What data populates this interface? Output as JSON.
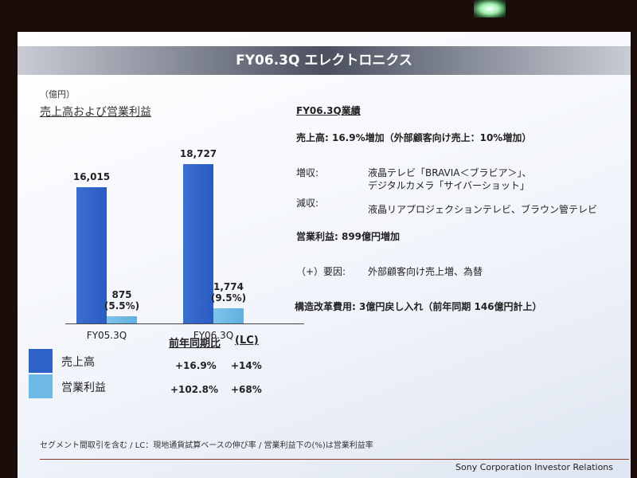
{
  "slide": {
    "title": "FY06.3Q エレクトロニクス",
    "unit": "（億円）",
    "chart_title": "売上高および営業利益"
  },
  "chart_data": {
    "type": "bar",
    "title": "売上高および営業利益",
    "categories": [
      "FY05.3Q",
      "FY06.3Q"
    ],
    "series": [
      {
        "name": "売上高",
        "values": [
          16015,
          18727
        ],
        "labels": [
          "16,015",
          "18,727"
        ],
        "color": "#2f62c8"
      },
      {
        "name": "営業利益",
        "values": [
          875,
          1774
        ],
        "labels": [
          "875\n(5.5%)",
          "1,774\n(9.5%)"
        ],
        "color": "#6fb9e6"
      }
    ]
  },
  "legend": {
    "items": [
      {
        "label": "売上高",
        "color": "#2f62c8"
      },
      {
        "label": "営業利益",
        "color": "#6fb9e6"
      }
    ]
  },
  "growth": {
    "header_yoy": "前年同期比",
    "header_lc": "(LC)",
    "rows": [
      {
        "yoy": "+16.9%",
        "lc": "+14%"
      },
      {
        "yoy": "+102.8%",
        "lc": "+68%"
      }
    ]
  },
  "results": {
    "heading": "FY06.3Q業績",
    "sales_line": "売上高:  16.9%増加（外部顧客向け売上：10%増加）",
    "increase_label": "増収:",
    "increase_text_1": "液晶テレビ「BRAVIA＜ブラビア＞」、",
    "increase_text_2": "デジタルカメラ「サイバーショット」",
    "decrease_label": "減収:",
    "decrease_text": "液晶リアプロジェクションテレビ、ブラウン管テレビ",
    "op_income_line": "営業利益:  899億円増加",
    "factor_label": "（+）要因:",
    "factor_text": "外部顧客向け売上増、為替",
    "restructuring_line": "構造改革費用:  3億円戻し入れ（前年同期  146億円計上）"
  },
  "footer": {
    "note": "セグメント間取引を含む / LC：現地通貨試算ベースの伸び率 / 営業利益下の(%)は営業利益率",
    "credit": "Sony Corporation Investor Relations"
  }
}
